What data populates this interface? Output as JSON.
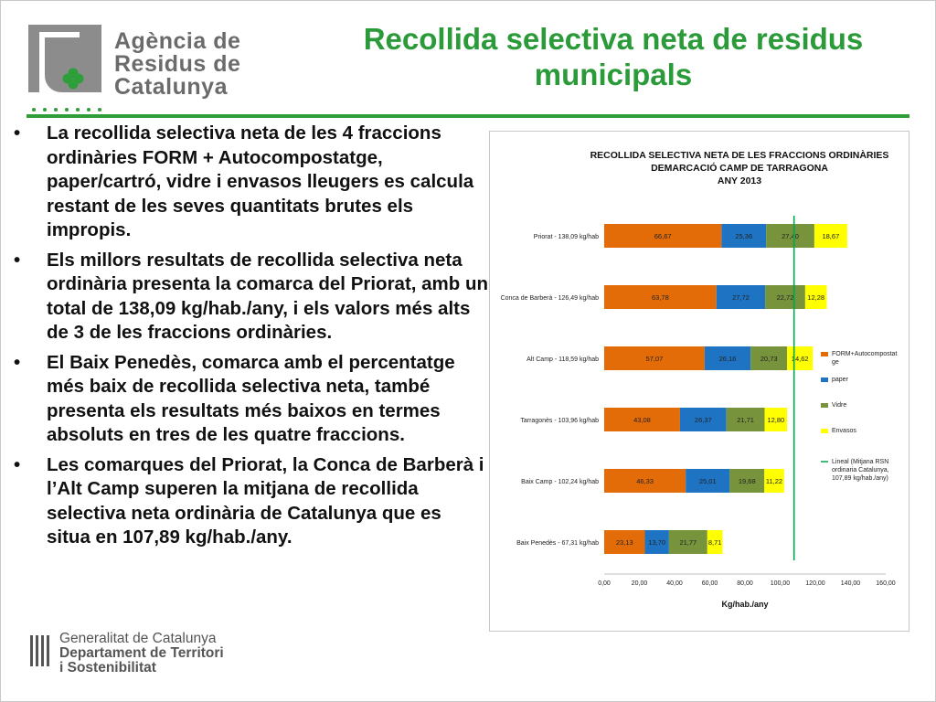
{
  "logo": {
    "line1": "Agència de",
    "line2": "Residus de",
    "line3": "Catalunya"
  },
  "slide_title": "Recollida selectiva neta de residus municipals",
  "bullets": [
    "La recollida selectiva neta de les 4 fraccions ordinàries FORM + Autocompostatge, paper/cartró, vidre i envasos lleugers es calcula restant de les seves quantitats brutes els impropis.",
    "Els millors resultats de recollida selectiva neta ordinària presenta la comarca del Priorat, amb un total de 138,09 kg/hab./any, i els valors més alts de 3 de les fraccions ordinàries.",
    "El Baix Penedès, comarca amb el percentatge més baix de recollida selectiva neta, també presenta els resultats més baixos en termes absoluts en tres de les quatre fraccions.",
    "Les comarques del Priorat, la Conca de Barberà i l’Alt Camp superen la mitjana de recollida selectiva neta ordinària de Catalunya que es situa en 107,89 kg/hab./any."
  ],
  "footer": {
    "line1": "Generalitat de Catalunya",
    "line2": "Departament de Territori",
    "line3": "i Sostenibilitat"
  },
  "chart_data": {
    "type": "bar",
    "orientation": "horizontal",
    "stacked": true,
    "title_lines": [
      "RECOLLIDA SELECTIVA NETA DE LES FRACCIONS ORDINÀRIES",
      "DEMARCACIÓ CAMP DE TARRAGONA",
      "ANY 2013"
    ],
    "categories": [
      "Priorat - 138,09 kg/hab",
      "Conca de Barberà - 126,49 kg/hab",
      "Alt Camp - 118,59 kg/hab",
      "Tarragonès - 103,96 kg/hab",
      "Baix Camp - 102,24 kg/hab",
      "Baix Penedès - 67,31 kg/hab"
    ],
    "series": [
      {
        "name": "FORM+Autocompostatge",
        "color": "#e36c09",
        "values": [
          66.67,
          63.78,
          57.07,
          43.08,
          46.33,
          23.13
        ],
        "labels": [
          "66,67",
          "63,78",
          "57,07",
          "43,08",
          "46,33",
          "23,13"
        ]
      },
      {
        "name": "paper",
        "color": "#1f73c3",
        "values": [
          25.36,
          27.72,
          26.16,
          26.37,
          25.01,
          13.7
        ],
        "labels": [
          "25,36",
          "27,72",
          "26,16",
          "26,37",
          "25,01",
          "13,70"
        ]
      },
      {
        "name": "Vidre",
        "color": "#77933c",
        "values": [
          27.4,
          22.72,
          20.73,
          21.71,
          19.68,
          21.77
        ],
        "labels": [
          "27,40",
          "22,72",
          "20,73",
          "21,71",
          "19,68",
          "21,77"
        ]
      },
      {
        "name": "Envasos",
        "color": "#ffff00",
        "values": [
          18.67,
          12.28,
          14.62,
          12.8,
          11.22,
          8.71
        ],
        "labels": [
          "18,67",
          "12,28",
          "14,62",
          "12,80",
          "11,22",
          "8,71"
        ]
      }
    ],
    "reference_line": {
      "name": "Lineal (Mitjana RSN ordinaria Catalunya, 107,89 kg/hab./any)",
      "legend_lines": [
        "Lineal (Mitjana RSN",
        "ordinaria  Catalunya,",
        "107,89 kg/hab./any)"
      ],
      "value": 107.89,
      "color": "#00a650"
    },
    "legend_lines": {
      "FORM+Autocompostatge": [
        "FORM+Autocompostat",
        "ge"
      ]
    },
    "xlim": [
      0,
      160
    ],
    "xticks": [
      "0,00",
      "20,00",
      "40,00",
      "60,00",
      "80,00",
      "100,00",
      "120,00",
      "140,00",
      "160,00"
    ],
    "xlabel": "Kg/hab./any",
    "legend_position": "right"
  }
}
